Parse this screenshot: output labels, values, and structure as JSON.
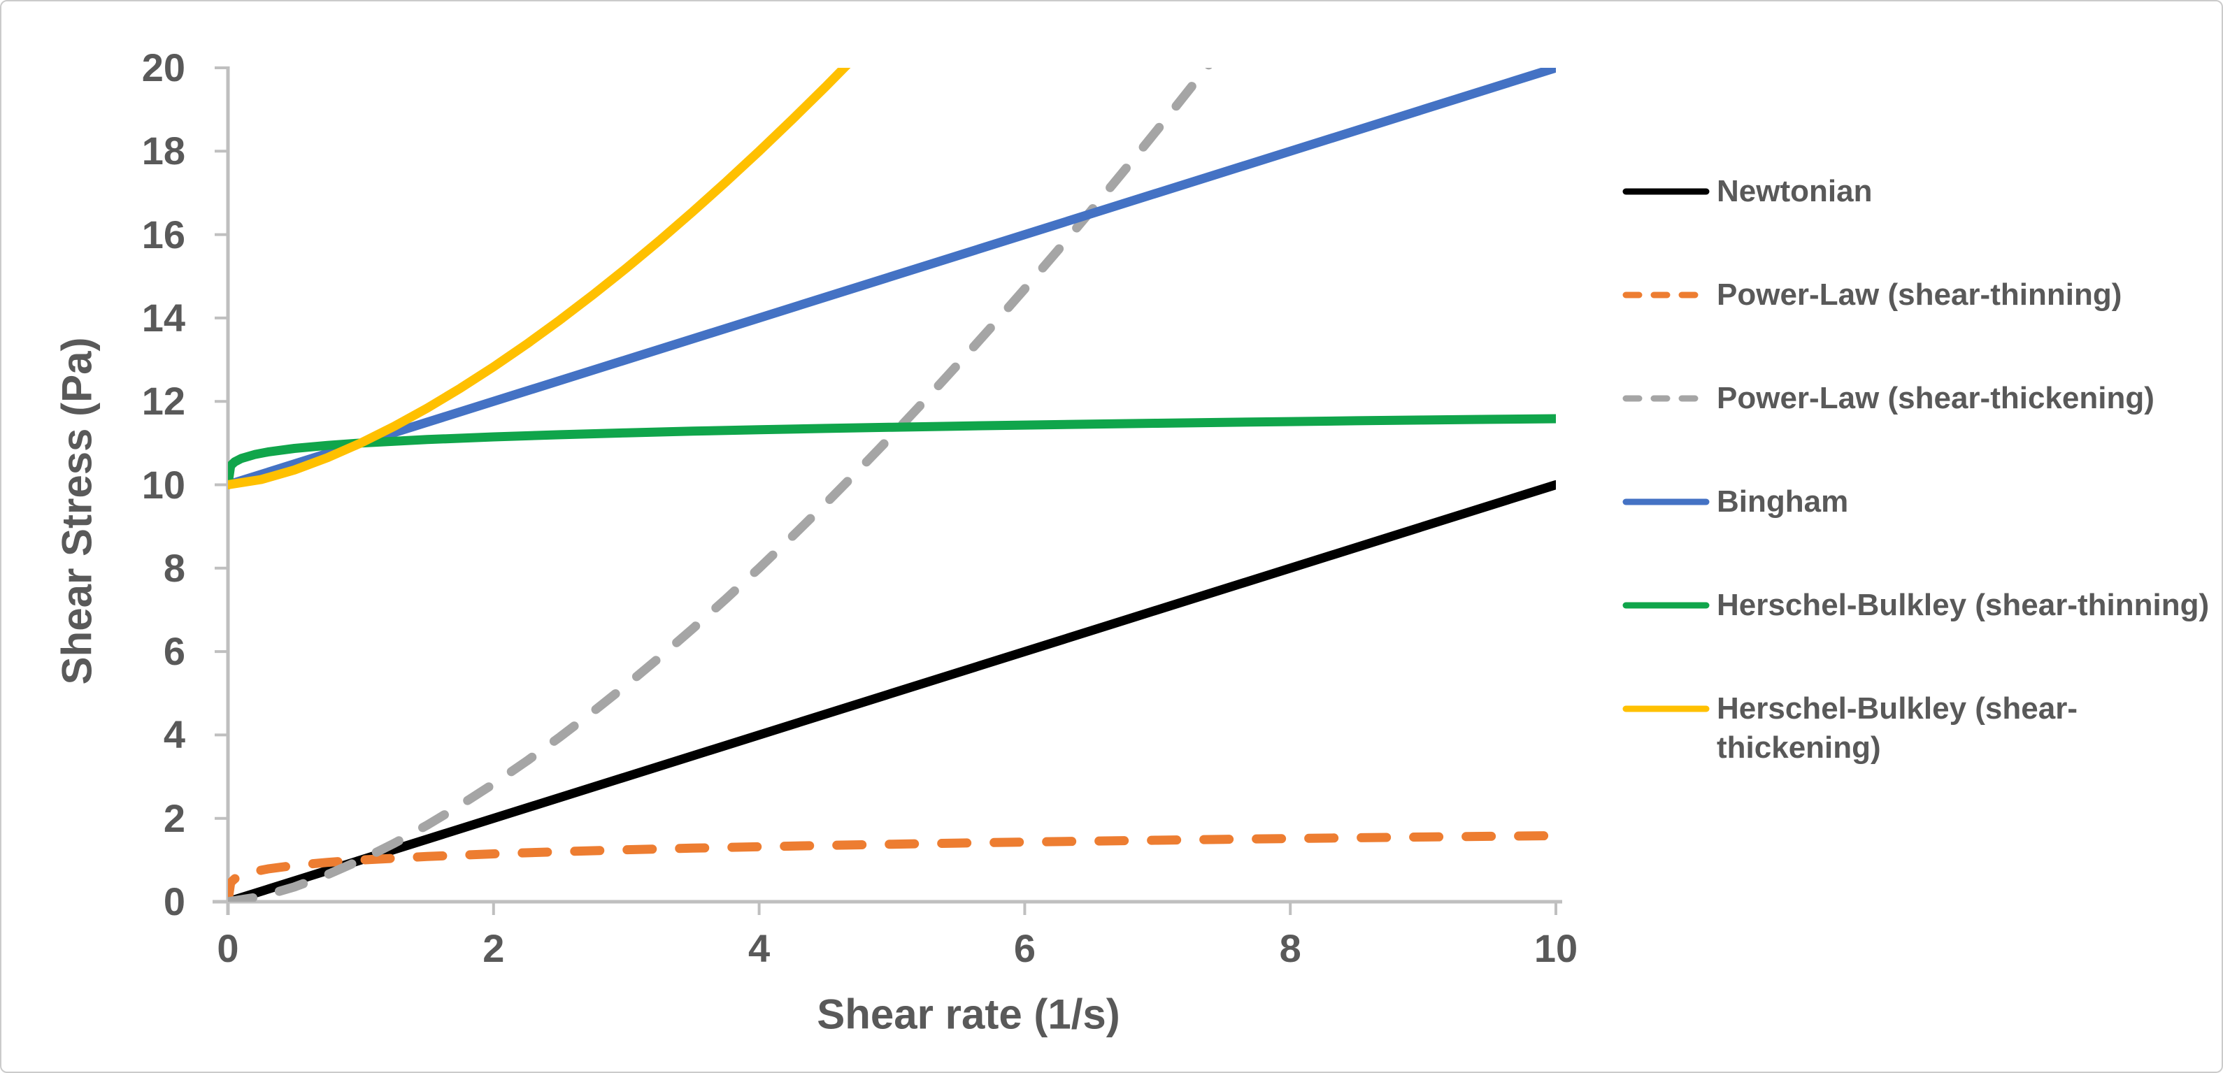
{
  "chart_data": {
    "type": "line",
    "title": "",
    "xlabel": "Shear rate (1/s)",
    "ylabel": "Shear Stress (Pa)",
    "xlim": [
      0,
      10
    ],
    "ylim": [
      0,
      20
    ],
    "x_ticks": [
      "0",
      "2",
      "4",
      "6",
      "8",
      "10"
    ],
    "y_ticks": [
      "0",
      "2",
      "4",
      "6",
      "8",
      "10",
      "12",
      "14",
      "16",
      "18",
      "20"
    ],
    "grid": false,
    "legend_position": "right",
    "series": [
      {
        "name": "Newtonian",
        "label_lines": [
          "Newtonian"
        ],
        "color": "#000000",
        "dash": "solid",
        "points": [
          [
            0,
            0
          ],
          [
            10,
            10
          ]
        ]
      },
      {
        "name": "Power-Law (shear-thinning)",
        "label_lines": [
          "Power-Law (shear-thinning)"
        ],
        "color": "#ED7D31",
        "dash": "dashed",
        "points": [
          [
            0,
            0
          ],
          [
            0.02,
            0.457
          ],
          [
            0.05,
            0.549
          ],
          [
            0.1,
            0.631
          ],
          [
            0.2,
            0.725
          ],
          [
            0.3,
            0.786
          ],
          [
            0.5,
            0.871
          ],
          [
            0.75,
            0.944
          ],
          [
            1,
            1
          ],
          [
            1.5,
            1.084
          ],
          [
            2,
            1.149
          ],
          [
            2.5,
            1.201
          ],
          [
            3,
            1.246
          ],
          [
            3.5,
            1.285
          ],
          [
            4,
            1.32
          ],
          [
            4.5,
            1.351
          ],
          [
            5,
            1.38
          ],
          [
            5.5,
            1.407
          ],
          [
            6,
            1.431
          ],
          [
            6.5,
            1.454
          ],
          [
            7,
            1.476
          ],
          [
            7.5,
            1.497
          ],
          [
            8,
            1.516
          ],
          [
            8.5,
            1.535
          ],
          [
            9,
            1.552
          ],
          [
            9.5,
            1.569
          ],
          [
            10,
            1.585
          ]
        ]
      },
      {
        "name": "Power-Law (shear-thickening)",
        "label_lines": [
          "Power-Law (shear-thickening)"
        ],
        "color": "#A5A5A5",
        "dash": "dashed",
        "points": [
          [
            0,
            0
          ],
          [
            0.25,
            0.125
          ],
          [
            0.5,
            0.354
          ],
          [
            0.75,
            0.65
          ],
          [
            1,
            1
          ],
          [
            1.25,
            1.398
          ],
          [
            1.5,
            1.837
          ],
          [
            1.75,
            2.315
          ],
          [
            2,
            2.828
          ],
          [
            2.25,
            3.375
          ],
          [
            2.5,
            3.953
          ],
          [
            2.75,
            4.56
          ],
          [
            3,
            5.196
          ],
          [
            3.25,
            5.859
          ],
          [
            3.5,
            6.548
          ],
          [
            3.75,
            7.262
          ],
          [
            4,
            8
          ],
          [
            4.25,
            8.762
          ],
          [
            4.5,
            9.546
          ],
          [
            4.75,
            10.353
          ],
          [
            5,
            11.18
          ],
          [
            5.25,
            12.028
          ],
          [
            5.5,
            12.899
          ],
          [
            5.75,
            13.788
          ],
          [
            6,
            14.697
          ],
          [
            6.25,
            15.625
          ],
          [
            6.5,
            16.575
          ],
          [
            6.75,
            17.537
          ],
          [
            7,
            18.52
          ],
          [
            7.25,
            19.521
          ],
          [
            7.5,
            20.54
          ]
        ]
      },
      {
        "name": "Bingham",
        "label_lines": [
          "Bingham"
        ],
        "color": "#4472C4",
        "dash": "solid",
        "points": [
          [
            0,
            10
          ],
          [
            10,
            20
          ]
        ]
      },
      {
        "name": "Herschel-Bulkley (shear-thinning)",
        "label_lines": [
          "Herschel-Bulkley (shear-thinning)"
        ],
        "color": "#10A54B",
        "dash": "solid",
        "points": [
          [
            0,
            10
          ],
          [
            0.02,
            10.457
          ],
          [
            0.05,
            10.549
          ],
          [
            0.1,
            10.631
          ],
          [
            0.2,
            10.725
          ],
          [
            0.3,
            10.786
          ],
          [
            0.5,
            10.871
          ],
          [
            0.75,
            10.944
          ],
          [
            1,
            11
          ],
          [
            1.5,
            11.084
          ],
          [
            2,
            11.149
          ],
          [
            2.5,
            11.201
          ],
          [
            3,
            11.246
          ],
          [
            3.5,
            11.285
          ],
          [
            4,
            11.32
          ],
          [
            4.5,
            11.351
          ],
          [
            5,
            11.38
          ],
          [
            5.5,
            11.407
          ],
          [
            6,
            11.431
          ],
          [
            6.5,
            11.454
          ],
          [
            7,
            11.476
          ],
          [
            7.5,
            11.497
          ],
          [
            8,
            11.516
          ],
          [
            8.5,
            11.535
          ],
          [
            9,
            11.552
          ],
          [
            9.5,
            11.569
          ],
          [
            10,
            11.585
          ]
        ]
      },
      {
        "name": "Herschel-Bulkley (shear-thickening)",
        "label_lines": [
          "Herschel-Bulkley (shear-",
          "thickening)"
        ],
        "color": "#FFC000",
        "dash": "solid",
        "points": [
          [
            0,
            10
          ],
          [
            0.25,
            10.125
          ],
          [
            0.5,
            10.354
          ],
          [
            0.75,
            10.65
          ],
          [
            1,
            11
          ],
          [
            1.25,
            11.398
          ],
          [
            1.5,
            11.837
          ],
          [
            1.75,
            12.315
          ],
          [
            2,
            12.828
          ],
          [
            2.25,
            13.375
          ],
          [
            2.5,
            13.953
          ],
          [
            2.75,
            14.56
          ],
          [
            3,
            15.196
          ],
          [
            3.25,
            15.859
          ],
          [
            3.5,
            16.548
          ],
          [
            3.75,
            17.262
          ],
          [
            4,
            18
          ],
          [
            4.25,
            18.762
          ],
          [
            4.5,
            19.546
          ],
          [
            4.75,
            20.353
          ]
        ]
      }
    ]
  },
  "style": {
    "axis_line_color": "#BFBFBF",
    "text_color": "#595959",
    "background_color": "#FFFFFF",
    "border_color": "#CBCBCB"
  }
}
